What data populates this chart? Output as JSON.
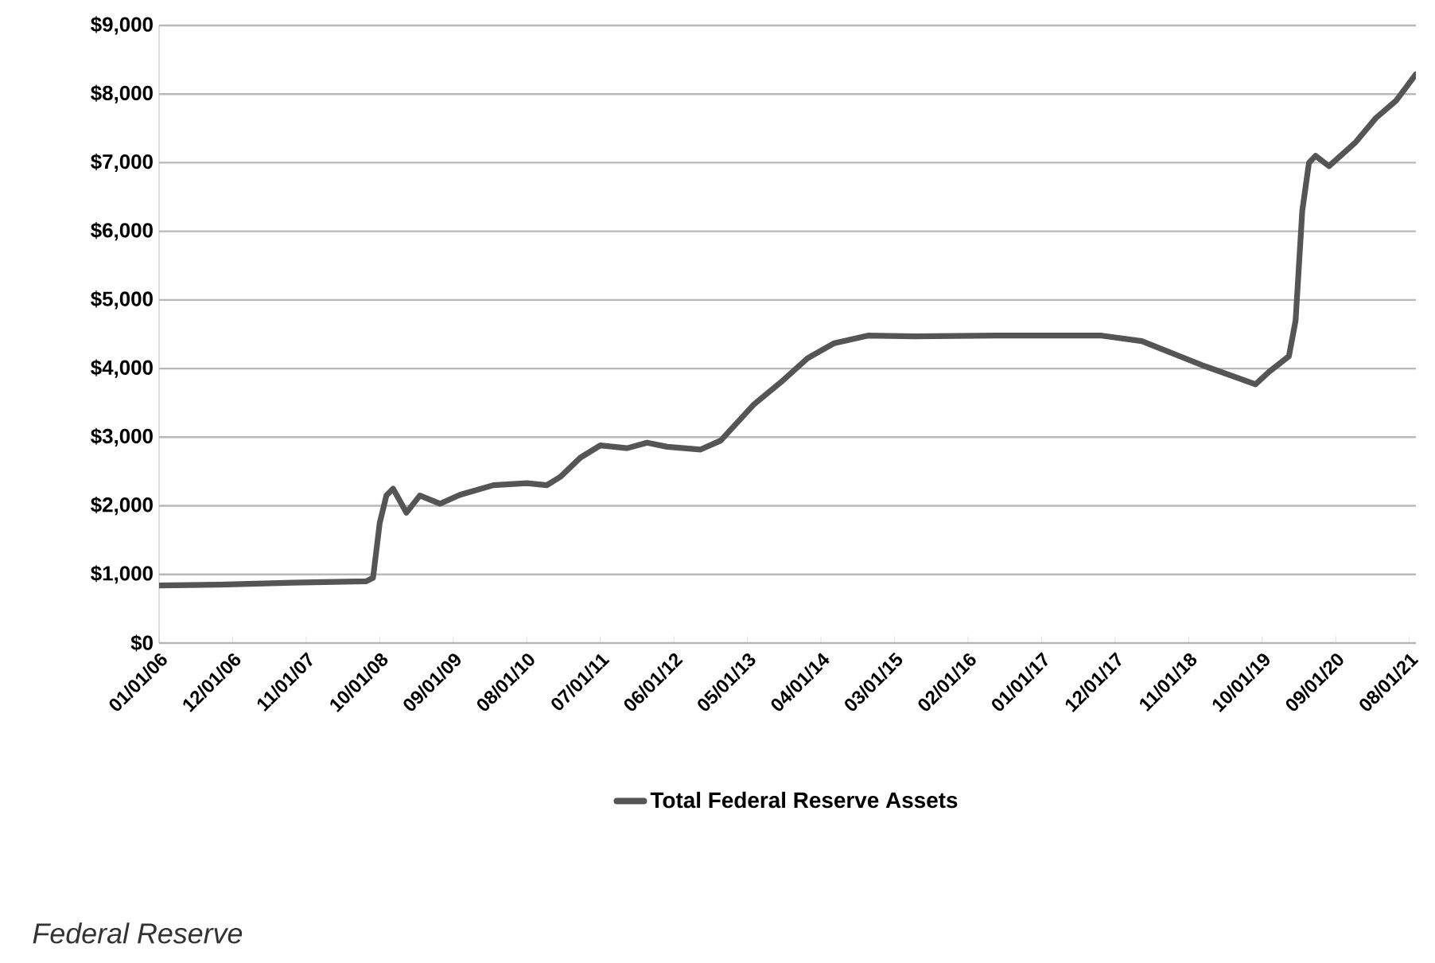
{
  "chart_data": {
    "type": "line",
    "x": [
      "2006-01",
      "2006-10",
      "2007-09",
      "2008-08",
      "2008-09",
      "2008-10",
      "2008-11",
      "2008-12",
      "2009-02",
      "2009-04",
      "2009-07",
      "2009-10",
      "2010-03",
      "2010-08",
      "2010-11",
      "2011-01",
      "2011-04",
      "2011-07",
      "2011-11",
      "2012-02",
      "2012-05",
      "2012-10",
      "2013-01",
      "2013-06",
      "2013-10",
      "2014-02",
      "2014-06",
      "2014-11",
      "2015-06",
      "2016-06",
      "2017-10",
      "2018-04",
      "2019-01",
      "2019-09",
      "2019-11",
      "2020-02",
      "2020-03",
      "2020-04",
      "2020-05",
      "2020-06",
      "2020-08",
      "2020-12",
      "2021-03",
      "2021-06",
      "2021-09"
    ],
    "series": [
      {
        "name": "Total Federal Reserve Assets",
        "color": "#555555",
        "values": [
          840,
          850,
          880,
          900,
          950,
          1750,
          2150,
          2250,
          1900,
          2150,
          2030,
          2160,
          2300,
          2330,
          2300,
          2420,
          2700,
          2880,
          2840,
          2920,
          2860,
          2820,
          2950,
          3480,
          3800,
          4150,
          4370,
          4480,
          4470,
          4480,
          4480,
          4400,
          4050,
          3770,
          3950,
          4180,
          4700,
          6300,
          7000,
          7100,
          6950,
          7300,
          7650,
          7900,
          8290
        ]
      }
    ],
    "xlim": [
      "2006-01",
      "2021-09"
    ],
    "xticks": [
      {
        "value": "2006-01",
        "label": "01/01/06"
      },
      {
        "value": "2006-12",
        "label": "12/01/06"
      },
      {
        "value": "2007-11",
        "label": "11/01/07"
      },
      {
        "value": "2008-10",
        "label": "10/01/08"
      },
      {
        "value": "2009-09",
        "label": "09/01/09"
      },
      {
        "value": "2010-08",
        "label": "08/01/10"
      },
      {
        "value": "2011-07",
        "label": "07/01/11"
      },
      {
        "value": "2012-06",
        "label": "06/01/12"
      },
      {
        "value": "2013-05",
        "label": "05/01/13"
      },
      {
        "value": "2014-04",
        "label": "04/01/14"
      },
      {
        "value": "2015-03",
        "label": "03/01/15"
      },
      {
        "value": "2016-02",
        "label": "02/01/16"
      },
      {
        "value": "2017-01",
        "label": "01/01/17"
      },
      {
        "value": "2017-12",
        "label": "12/01/17"
      },
      {
        "value": "2018-11",
        "label": "11/01/18"
      },
      {
        "value": "2019-10",
        "label": "10/01/19"
      },
      {
        "value": "2020-09",
        "label": "09/01/20"
      },
      {
        "value": "2021-08",
        "label": "08/01/21"
      }
    ],
    "ylim": [
      0,
      9000
    ],
    "yticks": [
      {
        "value": 0,
        "label": "$0"
      },
      {
        "value": 1000,
        "label": "$1,000"
      },
      {
        "value": 2000,
        "label": "$2,000"
      },
      {
        "value": 3000,
        "label": "$3,000"
      },
      {
        "value": 4000,
        "label": "$4,000"
      },
      {
        "value": 5000,
        "label": "$5,000"
      },
      {
        "value": 6000,
        "label": "$6,000"
      },
      {
        "value": 7000,
        "label": "$7,000"
      },
      {
        "value": 8000,
        "label": "$8,000"
      },
      {
        "value": 9000,
        "label": "$9,000"
      }
    ],
    "grid": "y",
    "legend": "bottom",
    "marker": "none",
    "line_style": "solid",
    "annotations": [
      "Federal Reserve"
    ]
  }
}
